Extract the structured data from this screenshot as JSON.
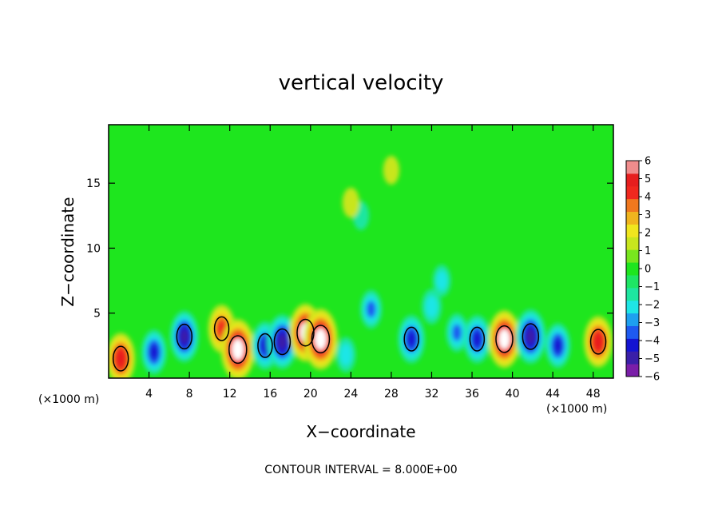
{
  "chart_data": {
    "type": "heatmap",
    "title": "vertical velocity",
    "xlabel": "X−coordinate",
    "ylabel": "Z−coordinate",
    "x_unit_left": "(×1000 m)",
    "x_unit_right": "(×1000 m)",
    "footer": "CONTOUR INTERVAL = 8.000E+00",
    "xlim": [
      0,
      50
    ],
    "ylim": [
      0,
      19.5
    ],
    "x_ticks": [
      4,
      8,
      12,
      16,
      20,
      24,
      28,
      32,
      36,
      40,
      44,
      48
    ],
    "x_tick_labels": [
      "4",
      "8",
      "12",
      "16",
      "20",
      "24",
      "28",
      "32",
      "36",
      "40",
      "44",
      "48"
    ],
    "y_ticks": [
      5,
      10,
      15
    ],
    "y_tick_labels": [
      "5",
      "10",
      "15"
    ],
    "colorbar": {
      "min": -6,
      "max": 6,
      "tick_values": [
        6,
        5,
        4,
        3,
        2,
        1,
        0,
        -1,
        -2,
        -3,
        -4,
        -5,
        -6
      ],
      "tick_labels": [
        "6",
        "5",
        "4",
        "3",
        "2",
        "1",
        "0",
        "−1",
        "−2",
        "−3",
        "−4",
        "−5",
        "−6"
      ],
      "colors": [
        "#7a1ea8",
        "#3a1fa8",
        "#1414d2",
        "#1e5af0",
        "#1ea0f0",
        "#1ee6e6",
        "#1ee6a0",
        "#1ee664",
        "#1ee61e",
        "#78e61e",
        "#c8e61e",
        "#f0e61e",
        "#f0b41e",
        "#f0781e",
        "#f0281e",
        "#e61e1e",
        "#f08c8c"
      ]
    },
    "background_value": 0.2,
    "features": [
      {
        "type": "updraft",
        "x": 1.2,
        "z": 1.5,
        "value": 4.5
      },
      {
        "type": "downdraft",
        "x": 4.5,
        "z": 2.0,
        "value": -3.5
      },
      {
        "type": "downdraft",
        "x": 7.5,
        "z": 3.2,
        "value": -4.5
      },
      {
        "type": "updraft",
        "x": 11.2,
        "z": 3.8,
        "value": 4.0
      },
      {
        "type": "updraft",
        "x": 12.8,
        "z": 2.2,
        "value": 6.0
      },
      {
        "type": "downdraft",
        "x": 15.5,
        "z": 2.5,
        "value": -4.0
      },
      {
        "type": "downdraft",
        "x": 17.2,
        "z": 2.8,
        "value": -5.0
      },
      {
        "type": "updraft",
        "x": 19.5,
        "z": 3.5,
        "value": 5.5
      },
      {
        "type": "updraft",
        "x": 21.0,
        "z": 3.0,
        "value": 6.0
      },
      {
        "type": "downdraft",
        "x": 23.5,
        "z": 1.8,
        "value": -2.0
      },
      {
        "type": "downdraft",
        "x": 26.0,
        "z": 5.3,
        "value": -2.5
      },
      {
        "type": "downdraft",
        "x": 30.0,
        "z": 3.0,
        "value": -4.0
      },
      {
        "type": "downdraft",
        "x": 32.0,
        "z": 5.5,
        "value": -2.0
      },
      {
        "type": "downdraft",
        "x": 34.5,
        "z": 3.5,
        "value": -2.5
      },
      {
        "type": "downdraft",
        "x": 36.5,
        "z": 3.0,
        "value": -4.0
      },
      {
        "type": "updraft",
        "x": 39.2,
        "z": 3.0,
        "value": 5.5
      },
      {
        "type": "downdraft",
        "x": 41.8,
        "z": 3.2,
        "value": -5.0
      },
      {
        "type": "downdraft",
        "x": 44.5,
        "z": 2.5,
        "value": -3.5
      },
      {
        "type": "updraft",
        "x": 48.5,
        "z": 2.8,
        "value": 4.5
      },
      {
        "type": "downdraft",
        "x": 25.0,
        "z": 12.5,
        "value": -1.0
      },
      {
        "type": "downdraft",
        "x": 33.0,
        "z": 7.5,
        "value": -1.5
      },
      {
        "type": "updraft",
        "x": 24.0,
        "z": 13.5,
        "value": 1.2
      },
      {
        "type": "updraft",
        "x": 28.0,
        "z": 16.0,
        "value": 1.0
      }
    ]
  }
}
